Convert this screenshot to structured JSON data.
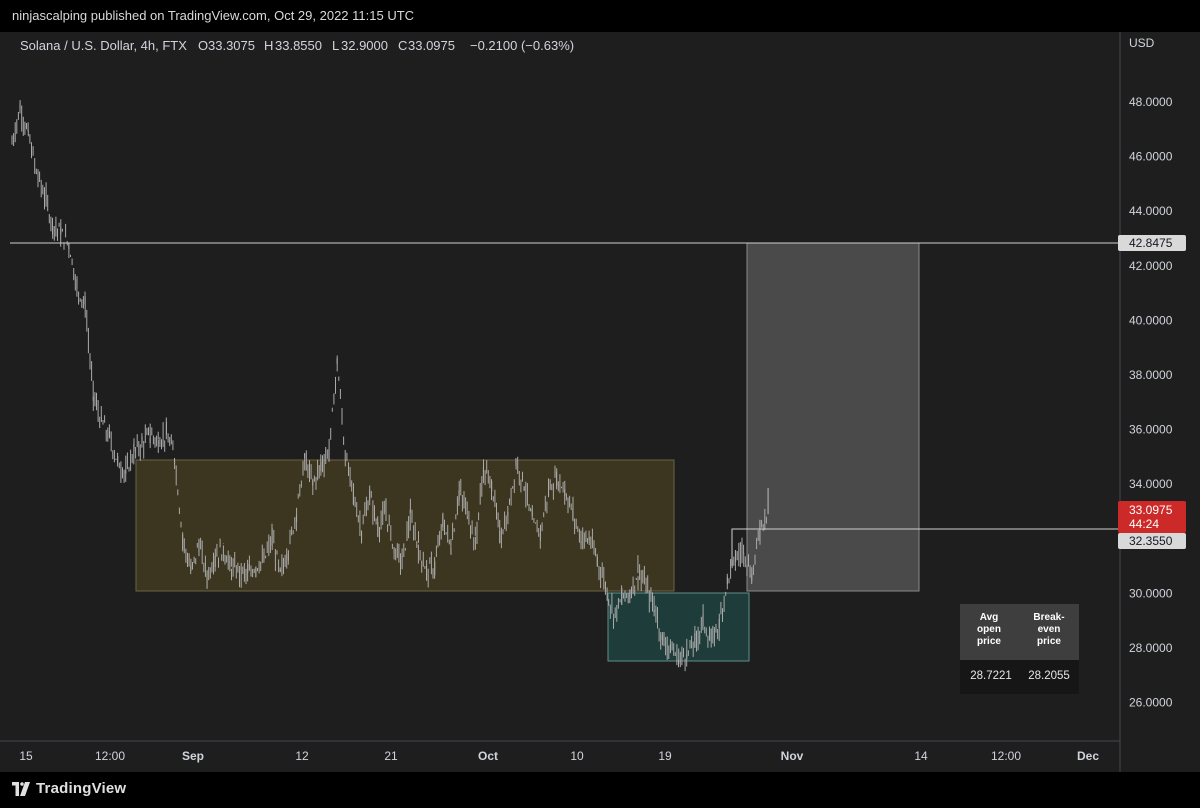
{
  "header": {
    "published": "ninjascalping published on TradingView.com, Oct 29, 2022 11:15 UTC"
  },
  "footer": {
    "brand": "TradingView"
  },
  "legend": {
    "symbol": "Solana / U.S. Dollar, 4h, FTX",
    "o_label": "O",
    "o": "33.3075",
    "h_label": "H",
    "h": "33.8550",
    "l_label": "L",
    "l": "32.9000",
    "c_label": "C",
    "c": "33.0975",
    "change": "−0.2100 (−0.63%)"
  },
  "info_box": {
    "headers": [
      [
        "Avg",
        "open",
        "price"
      ],
      [
        "Break-",
        "even",
        "price"
      ]
    ],
    "values": [
      "28.7221",
      "28.2055"
    ]
  },
  "chart_data": {
    "type": "line",
    "title": "Solana / U.S. Dollar, 4h, FTX",
    "currency": "USD",
    "y_ticks": [
      "48.0000",
      "46.0000",
      "44.0000",
      "42.0000",
      "40.0000",
      "38.0000",
      "36.0000",
      "34.0000",
      "30.0000",
      "28.0000",
      "26.0000"
    ],
    "ylim": [
      24.6,
      49.7
    ],
    "x_ticks": [
      "15",
      "12:00",
      "Sep",
      "12",
      "21",
      "Oct",
      "10",
      "19",
      "Nov",
      "14",
      "12:00",
      "Dec"
    ],
    "series": [
      {
        "points": [
          [
            0,
            46.5
          ],
          [
            1,
            47.8
          ],
          [
            2,
            46.8
          ],
          [
            3,
            45.4
          ],
          [
            4,
            44.6
          ],
          [
            5,
            43.5
          ],
          [
            6,
            43.2
          ],
          [
            7,
            42.8
          ],
          [
            8,
            41.2
          ],
          [
            9,
            40.6
          ],
          [
            10,
            37.2
          ],
          [
            11,
            36.3
          ],
          [
            12,
            35.7
          ],
          [
            13,
            34.8
          ],
          [
            14,
            34.4
          ],
          [
            15,
            35.2
          ],
          [
            16,
            35.5
          ],
          [
            17,
            35.8
          ],
          [
            18,
            35.6
          ],
          [
            19,
            35.8
          ],
          [
            20,
            35.0
          ],
          [
            21,
            32.0
          ],
          [
            22,
            30.8
          ],
          [
            23,
            31.8
          ],
          [
            24,
            30.6
          ],
          [
            25,
            31.4
          ],
          [
            26,
            31.6
          ],
          [
            27,
            30.9
          ],
          [
            28,
            30.8
          ],
          [
            29,
            30.7
          ],
          [
            30,
            31.0
          ],
          [
            31,
            31.2
          ],
          [
            32,
            32.0
          ],
          [
            33,
            30.7
          ],
          [
            34,
            31.6
          ],
          [
            35,
            33.0
          ],
          [
            36,
            34.9
          ],
          [
            37,
            34.0
          ],
          [
            38,
            34.7
          ],
          [
            39,
            35.2
          ],
          [
            40,
            38.5
          ],
          [
            41,
            35.0
          ],
          [
            42,
            33.6
          ],
          [
            43,
            32.3
          ],
          [
            44,
            33.6
          ],
          [
            45,
            32.4
          ],
          [
            46,
            33.0
          ],
          [
            47,
            31.6
          ],
          [
            48,
            31.2
          ],
          [
            49,
            32.8
          ],
          [
            50,
            31.7
          ],
          [
            51,
            30.8
          ],
          [
            52,
            31.0
          ],
          [
            53,
            32.6
          ],
          [
            54,
            31.7
          ],
          [
            55,
            33.7
          ],
          [
            56,
            33.0
          ],
          [
            57,
            31.9
          ],
          [
            58,
            34.5
          ],
          [
            59,
            34.0
          ],
          [
            60,
            32.1
          ],
          [
            61,
            32.8
          ],
          [
            62,
            34.8
          ],
          [
            63,
            34.0
          ],
          [
            64,
            32.6
          ],
          [
            65,
            32.2
          ],
          [
            66,
            33.8
          ],
          [
            67,
            34.2
          ],
          [
            68,
            33.8
          ],
          [
            69,
            32.9
          ],
          [
            70,
            32.0
          ],
          [
            71,
            32.0
          ],
          [
            72,
            31.2
          ],
          [
            73,
            30.3
          ],
          [
            74,
            29.2
          ],
          [
            75,
            29.8
          ],
          [
            76,
            30.0
          ],
          [
            77,
            30.8
          ],
          [
            78,
            30.2
          ],
          [
            79,
            29.5
          ],
          [
            80,
            28.3
          ],
          [
            81,
            28.0
          ],
          [
            82,
            27.6
          ],
          [
            83,
            27.8
          ],
          [
            84,
            28.2
          ],
          [
            85,
            29.0
          ],
          [
            86,
            28.2
          ],
          [
            87,
            28.9
          ],
          [
            88,
            30.5
          ],
          [
            89,
            31.3
          ],
          [
            90,
            31.6
          ],
          [
            91,
            30.6
          ],
          [
            92,
            32.4
          ],
          [
            93,
            33.1
          ]
        ]
      }
    ],
    "current_price": {
      "value": "33.0975",
      "countdown": "44:24",
      "color": "#cc2929"
    },
    "levels": [
      {
        "value": "42.8475"
      },
      {
        "value": "32.3550"
      }
    ],
    "grid": false,
    "colors": {
      "background": "#1e1e1e",
      "candles": "#aaaaaa",
      "consolidation_box": "#3c3520",
      "buy_box": "#1e3d3a",
      "target_box": "#4a4a4a"
    }
  }
}
